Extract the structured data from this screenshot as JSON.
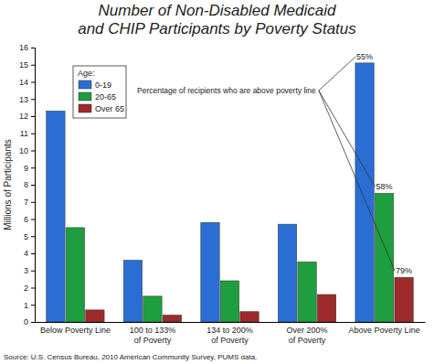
{
  "chart_data": {
    "type": "bar",
    "title": "Number of Non-Disabled Medicaid\nand CHIP Participants by Poverty Status",
    "y_label": "Millions of Participants",
    "source": "Source: U.S. Census Bureau, 2010 American Community Survey, PUMS data.",
    "categories": [
      "Below Poverty Line",
      "100 to 133%\nof Poverty",
      "134 to 200%\nof Poverty",
      "Over 200%\nof Poverty",
      "Above Poverty Line"
    ],
    "series": [
      {
        "name": "0-19",
        "color": "#2a6ed4",
        "values": [
          12.3,
          3.6,
          5.8,
          5.7,
          15.1
        ]
      },
      {
        "name": "20-65",
        "color": "#1e9e3e",
        "values": [
          5.5,
          1.5,
          2.4,
          3.5,
          7.5
        ]
      },
      {
        "name": "Over 65",
        "color": "#9e2a2b",
        "values": [
          0.7,
          0.4,
          0.6,
          1.6,
          2.6
        ]
      }
    ],
    "legend_title": "Age:",
    "legend": "upper left",
    "annotation": {
      "text": "Percentage of recipients who are above poverty line",
      "labels": [
        "55%",
        "58%",
        "79%"
      ]
    },
    "ylim": [
      0,
      16
    ],
    "yticks": [
      0,
      1,
      2,
      3,
      4,
      5,
      6,
      7,
      8,
      9,
      10,
      11,
      12,
      13,
      14,
      15,
      16
    ],
    "grid": false
  }
}
